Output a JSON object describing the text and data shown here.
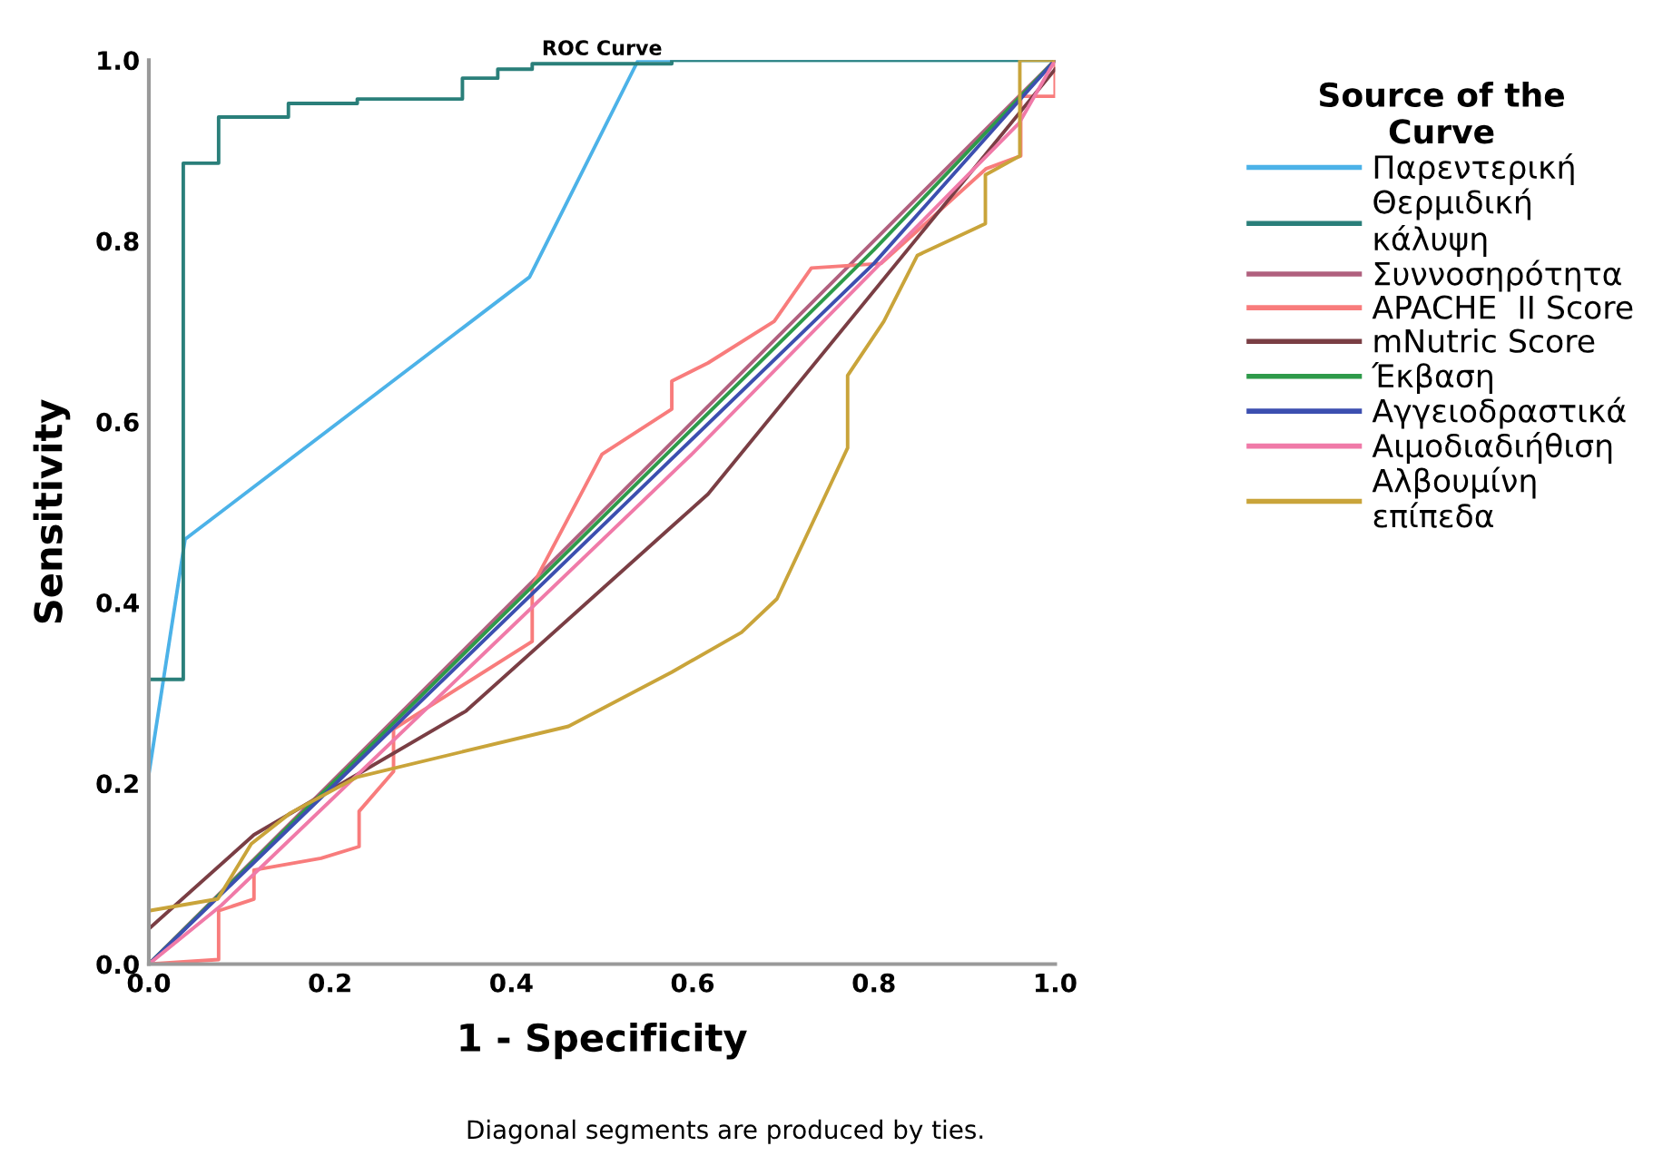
{
  "chart_data": {
    "type": "line",
    "title": "ROC Curve",
    "xlabel": "1 - Specificity",
    "ylabel": "Sensitivity",
    "legend_title": "Source of the\nCurve",
    "legend": "right",
    "grid": false,
    "marker": "none",
    "line_style": "solid",
    "xlim": [
      0,
      1
    ],
    "ylim": [
      0,
      1
    ],
    "xticks": [
      {
        "value": 0,
        "label": "0.0"
      },
      {
        "value": 0.2,
        "label": "0.2"
      },
      {
        "value": 0.4,
        "label": "0.4"
      },
      {
        "value": 0.6,
        "label": "0.6"
      },
      {
        "value": 0.8,
        "label": "0.8"
      },
      {
        "value": 1,
        "label": "1.0"
      }
    ],
    "yticks": [
      {
        "value": 0,
        "label": "0.0"
      },
      {
        "value": 0.2,
        "label": "0.2"
      },
      {
        "value": 0.4,
        "label": "0.4"
      },
      {
        "value": 0.6,
        "label": "0.6"
      },
      {
        "value": 0.8,
        "label": "0.8"
      },
      {
        "value": 1,
        "label": "1.0"
      }
    ],
    "annotations": [
      "Diagonal segments are produced by ties."
    ],
    "series": [
      {
        "name": "Παρεντερική",
        "color": "#4cb2e8",
        "x": [
          0,
          0.04,
          0.42,
          0.54,
          1
        ],
        "values": [
          0.21,
          0.47,
          0.76,
          1,
          1
        ]
      },
      {
        "name": "Θερμιδική\nκάλυψη",
        "color": "#2a7f7a",
        "x": [
          0,
          0,
          0.038,
          0.038,
          0.077,
          0.077,
          0.154,
          0.154,
          0.23,
          0.23,
          0.346,
          0.346,
          0.385,
          0.385,
          0.423,
          0.423,
          0.577,
          0.577,
          1
        ],
        "values": [
          0,
          0.315,
          0.315,
          0.886,
          0.886,
          0.937,
          0.937,
          0.952,
          0.952,
          0.957,
          0.957,
          0.98,
          0.98,
          0.99,
          0.99,
          0.996,
          0.996,
          1,
          1
        ]
      },
      {
        "name": "Συννοσηρότητα",
        "color": "#b0607e",
        "x": [
          0,
          1
        ],
        "values": [
          0,
          1
        ]
      },
      {
        "name": "APACHE  II Score",
        "color": "#f87c7c",
        "x": [
          0,
          0.077,
          0.077,
          0.116,
          0.116,
          0.19,
          0.232,
          0.232,
          0.27,
          0.27,
          0.423,
          0.423,
          0.5,
          0.577,
          0.577,
          0.617,
          0.69,
          0.731,
          0.808,
          0.924,
          0.962,
          0.962,
          1,
          1
        ],
        "values": [
          0,
          0.005,
          0.059,
          0.072,
          0.104,
          0.117,
          0.13,
          0.169,
          0.213,
          0.26,
          0.357,
          0.418,
          0.564,
          0.614,
          0.645,
          0.665,
          0.711,
          0.77,
          0.775,
          0.88,
          0.894,
          0.96,
          0.96,
          1
        ]
      },
      {
        "name": "mNutric Score",
        "color": "#7a3e44",
        "x": [
          0,
          0.116,
          0.35,
          0.577,
          0.617,
          1
        ],
        "values": [
          0.039,
          0.143,
          0.28,
          0.484,
          0.52,
          0.99
        ]
      },
      {
        "name": "Έκβαση",
        "color": "#2e9a4a",
        "x": [
          0,
          0.8,
          1
        ],
        "values": [
          0,
          0.79,
          1
        ]
      },
      {
        "name": "Αγγειοδραστικά",
        "color": "#3c4fb0",
        "x": [
          0,
          0.8,
          1
        ],
        "values": [
          0,
          0.775,
          1
        ]
      },
      {
        "name": "Αιμοδιαδιήθιση",
        "color": "#f07aa8",
        "x": [
          0,
          0.08,
          0.6,
          0.96,
          1
        ],
        "values": [
          0,
          0.065,
          0.565,
          0.93,
          1
        ]
      },
      {
        "name": "Αλβουμίνη\nεπίπεδα",
        "color": "#c9a43a",
        "x": [
          0,
          0,
          0.076,
          0.113,
          0.156,
          0.23,
          0.463,
          0.577,
          0.654,
          0.693,
          0.771,
          0.771,
          0.811,
          0.848,
          0.923,
          0.923,
          0.961,
          0.961,
          1
        ],
        "values": [
          0,
          0.059,
          0.072,
          0.133,
          0.167,
          0.207,
          0.263,
          0.323,
          0.367,
          0.404,
          0.571,
          0.651,
          0.711,
          0.784,
          0.819,
          0.873,
          0.894,
          1,
          1
        ]
      }
    ]
  }
}
